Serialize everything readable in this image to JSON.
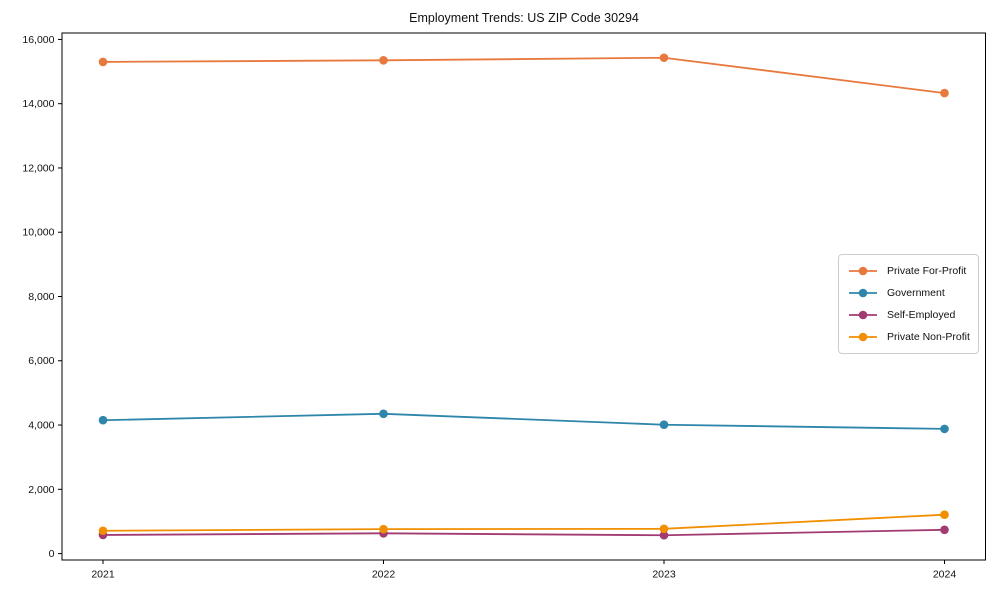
{
  "chart_data": {
    "type": "line",
    "title": "Employment Trends: US ZIP Code 30294",
    "x": [
      2021,
      2022,
      2023,
      2024
    ],
    "xtick_labels": [
      "2021",
      "2022",
      "2023",
      "2024"
    ],
    "series": [
      {
        "name": "Private For-Profit",
        "color": "#E8793E",
        "values": [
          15300,
          15350,
          15430,
          14330
        ]
      },
      {
        "name": "Government",
        "color": "#2E86AB",
        "values": [
          4150,
          4350,
          4010,
          3880
        ]
      },
      {
        "name": "Self-Employed",
        "color": "#A23B72",
        "values": [
          580,
          630,
          570,
          740
        ]
      },
      {
        "name": "Private Non-Profit",
        "color": "#F18F01",
        "values": [
          710,
          760,
          770,
          1210
        ]
      }
    ],
    "ylim": [
      -200,
      16200
    ],
    "yticks": [
      0,
      2000,
      4000,
      6000,
      8000,
      10000,
      12000,
      14000,
      16000
    ],
    "ytick_labels": [
      "0",
      "2,000",
      "4,000",
      "6,000",
      "8,000",
      "10,000",
      "12,000",
      "14,000",
      "16,000"
    ],
    "grid": false,
    "marker": "circle",
    "legend_position": "center-right",
    "frame_color": "#000000",
    "background_color": "#ffffff"
  }
}
